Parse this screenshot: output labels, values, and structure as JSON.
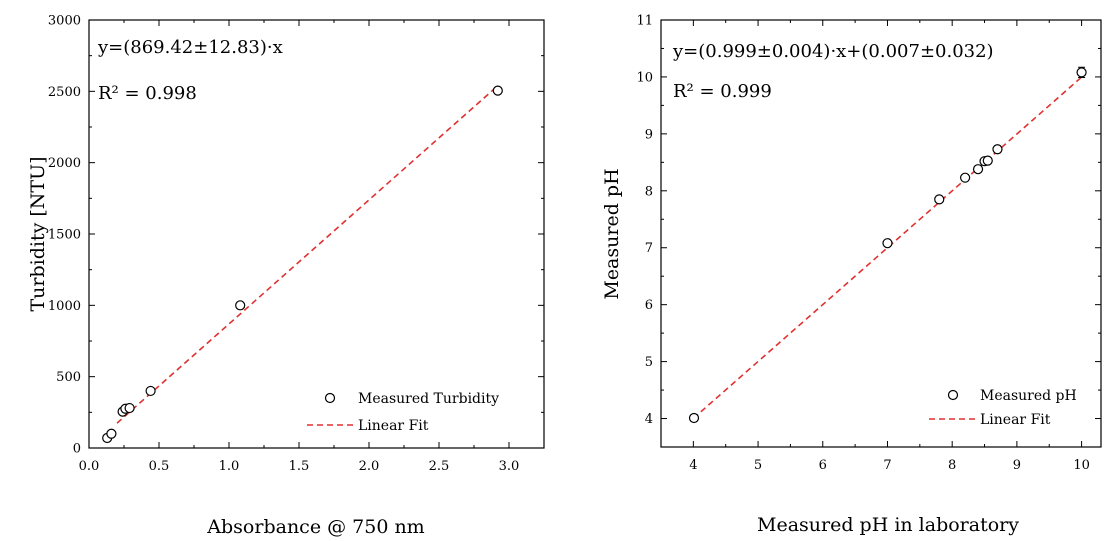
{
  "chart_data": [
    {
      "type": "scatter",
      "title": "",
      "xlabel": "Absorbance @ 750 nm",
      "ylabel": "Turbidity [NTU]",
      "xlim": [
        0.0,
        3.25
      ],
      "ylim": [
        0,
        3000
      ],
      "xticks": [
        "0.0",
        "0.5",
        "1.0",
        "1.5",
        "2.0",
        "2.5",
        "3.0"
      ],
      "yticks": [
        "0",
        "500",
        "1000",
        "1500",
        "2000",
        "2500",
        "3000"
      ],
      "equation": "y=(869.42±12.83)·x",
      "r2": "R² = 0.998",
      "legend_position": "bottom-right",
      "series": [
        {
          "name": "Measured Turbidity",
          "kind": "points",
          "color": "#000000",
          "x": [
            0.13,
            0.16,
            0.24,
            0.26,
            0.29,
            0.44,
            1.08,
            2.92
          ],
          "y": [
            70,
            100,
            255,
            275,
            280,
            400,
            1000,
            2505
          ]
        },
        {
          "name": "Linear Fit",
          "kind": "line",
          "color": "#e03131",
          "x": [
            0.2,
            2.92
          ],
          "y": [
            174,
            2539
          ]
        }
      ]
    },
    {
      "type": "scatter",
      "title": "",
      "xlabel": "Measured pH in laboratory",
      "ylabel": "Measured pH",
      "xlim": [
        3.5,
        10.3
      ],
      "ylim": [
        3.5,
        11
      ],
      "xticks": [
        "4",
        "5",
        "6",
        "7",
        "8",
        "9",
        "10"
      ],
      "yticks": [
        "4",
        "5",
        "6",
        "7",
        "8",
        "9",
        "10",
        "11"
      ],
      "equation": "y=(0.999±0.004)·x+(0.007±0.032)",
      "r2": "R² = 0.999",
      "legend_position": "bottom-right",
      "series": [
        {
          "name": "Measured pH",
          "kind": "points",
          "color": "#000000",
          "x": [
            4.01,
            7.0,
            7.8,
            8.2,
            8.4,
            8.5,
            8.55,
            8.7,
            10.0
          ],
          "y": [
            4.01,
            7.08,
            7.85,
            8.23,
            8.38,
            8.52,
            8.53,
            8.73,
            10.08
          ],
          "yerr": [
            0.03,
            0.04,
            0.04,
            0.05,
            0.05,
            0.04,
            0.05,
            0.06,
            0.09
          ]
        },
        {
          "name": "Linear Fit",
          "kind": "line",
          "color": "#e03131",
          "x": [
            4.0,
            10.0
          ],
          "y": [
            4.003,
            9.997
          ]
        }
      ]
    }
  ]
}
